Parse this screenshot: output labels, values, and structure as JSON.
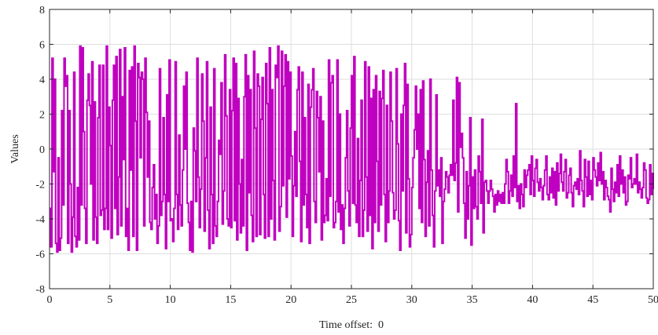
{
  "chart_data": {
    "type": "line",
    "title": "",
    "xlabel": "Time offset:  0",
    "ylabel": "Values",
    "xlim": [
      0,
      50
    ],
    "ylim": [
      -8,
      8
    ],
    "x_ticks": [
      0,
      5,
      10,
      15,
      20,
      25,
      30,
      35,
      40,
      45,
      50
    ],
    "y_ticks": [
      -8,
      -6,
      -4,
      -2,
      0,
      2,
      4,
      6,
      8
    ],
    "grid": true,
    "legend": "none",
    "series_color": "#C000C0",
    "interpolation": "step",
    "series": [
      {
        "dt": 0.1,
        "values": [
          -3.4,
          -5.6,
          5.2,
          -1.3,
          4.0,
          -5.4,
          -5.9,
          -0.5,
          -5.8,
          -5.1,
          2.2,
          -3.2,
          5.2,
          3.6,
          4.2,
          -5.4,
          2.2,
          -2.0,
          -5.9,
          -3.9,
          4.4,
          -5.0,
          -5.6,
          -2.2,
          -5.2,
          5.9,
          -3.2,
          5.8,
          1.0,
          -3.4,
          -5.4,
          2.8,
          4.3,
          2.5,
          -2.0,
          5.0,
          -5.2,
          2.7,
          -3.9,
          -5.4,
          1.8,
          4.8,
          -3.8,
          -3.5,
          4.8,
          -4.6,
          -3.4,
          5.9,
          -4.6,
          2.4,
          0.2,
          -5.1,
          2.8,
          4.8,
          -3.4,
          5.3,
          -4.9,
          -1.6,
          5.7,
          -4.4,
          3.0,
          -0.6,
          5.8,
          -5.0,
          -3.4,
          -5.8,
          4.5,
          -1.2,
          4.7,
          -5.0,
          5.9,
          1.6,
          -5.8,
          4.9,
          4.1,
          -0.5,
          4.4,
          4.0,
          -4.4,
          5.2,
          2.1,
          -1.6,
          1.6,
          -4.2,
          -4.6,
          -2.2,
          -0.9,
          -4.0,
          -2.6,
          -5.4,
          -4.4,
          4.6,
          -3.8,
          -3.0,
          1.8,
          -2.6,
          -5.7,
          3.1,
          -3.0,
          5.1,
          -4.1,
          -4.0,
          -5.3,
          -3.4,
          5.0,
          -2.6,
          -4.6,
          0.8,
          -3.2,
          -4.4,
          -1.2,
          3.6,
          0.0,
          4.4,
          -3.1,
          -4.2,
          -5.8,
          -3.0,
          -5.9,
          1.2,
          -0.1,
          -3.0,
          5.2,
          -1.6,
          -4.5,
          -2.3,
          4.3,
          1.6,
          -4.7,
          -0.5,
          5.0,
          -3.5,
          -5.7,
          2.4,
          -2.6,
          -5.4,
          4.6,
          -4.4,
          -5.0,
          -3.0,
          0.5,
          -0.3,
          3.8,
          -4.3,
          -2.4,
          5.4,
          1.9,
          -4.0,
          -4.4,
          3.4,
          -4.5,
          2.2,
          5.2,
          -4.1,
          4.9,
          -5.2,
          2.9,
          -2.0,
          -4.8,
          -0.6,
          -4.4,
          3.0,
          5.4,
          -5.8,
          4.2,
          -2.5,
          3.4,
          -3.8,
          -5.3,
          5.6,
          1.2,
          -5.0,
          4.3,
          3.6,
          -4.9,
          1.7,
          4.1,
          -2.6,
          -5.1,
          4.9,
          2.6,
          -5.0,
          5.8,
          -4.0,
          3.4,
          -1.8,
          -5.2,
          4.8,
          4.1,
          5.9,
          -4.7,
          -3.3,
          5.6,
          -2.1,
          3.6,
          5.4,
          -3.9,
          5.0,
          -1.7,
          4.4,
          -0.4,
          -5.0,
          -2.1,
          1.0,
          -2.7,
          3.4,
          4.7,
          -0.7,
          -5.3,
          4.4,
          -3.2,
          1.8,
          -2.6,
          -4.5,
          3.7,
          -5.4,
          2.4,
          3.4,
          4.6,
          -3.0,
          -4.2,
          3.3,
          1.8,
          -1.3,
          3.0,
          -5.2,
          1.6,
          -4.2,
          -3.8,
          -1.7,
          -4.1,
          5.1,
          -2.7,
          3.8,
          4.2,
          -4.5,
          -4.2,
          -3.0,
          5.1,
          -3.6,
          2.0,
          -4.6,
          -3.2,
          -5.4,
          -3.4,
          -0.5,
          2.2,
          -2.4,
          -4.4,
          1.2,
          4.2,
          -3.1,
          5.3,
          -3.2,
          -4.2,
          0.6,
          -5.0,
          -1.8,
          2.8,
          -5.0,
          -3.5,
          5.0,
          -1.6,
          -4.7,
          4.7,
          -3.8,
          2.9,
          -5.7,
          3.4,
          -4.2,
          4.2,
          -0.7,
          -4.7,
          3.3,
          -3.2,
          2.9,
          4.5,
          -2.6,
          -5.3,
          2.5,
          -4.2,
          -2.4,
          4.4,
          1.6,
          -2.5,
          -4.0,
          -3.5,
          4.6,
          0.3,
          -4.1,
          -5.8,
          2.0,
          -2.4,
          2.5,
          4.9,
          -4.8,
          3.7,
          -1.7,
          -5.6,
          -4.9,
          -2.2,
          -0.5,
          1.1,
          3.6,
          0.0,
          2.0,
          -3.4,
          3.4,
          -4.2,
          3.9,
          -0.6,
          -5.0,
          -1.9,
          -0.1,
          -4.4,
          4.0,
          -1.2,
          -3.8,
          -5.6,
          -2.4,
          3.1,
          -2.1,
          -1.2,
          -2.7,
          -0.5,
          -5.4,
          -3.0,
          -2.3,
          -1.3,
          -1.6,
          -2.5,
          -1.5,
          -0.9,
          -1.5,
          2.8,
          -1.8,
          -0.8,
          4.1,
          -3.6,
          3.8,
          0.1,
          0.9,
          -0.5,
          -3.1,
          -5.1,
          -1.3,
          -4.0,
          -2.1,
          1.8,
          -5.5,
          -1.6,
          -3.4,
          -1.2,
          -3.3,
          -4.0,
          -0.4,
          -1.3,
          -3.1,
          1.7,
          -4.8,
          -1.9,
          -1.8,
          -2.4,
          -3.1,
          -2.4,
          -1.8,
          -2.3,
          -2.7,
          -3.6,
          -2.6,
          -3.2,
          -2.4,
          -3.0,
          -2.6,
          -3.1,
          -2.5,
          -3.1,
          -2.0,
          -0.6,
          -1.3,
          -3.1,
          -2.4,
          -1.5,
          -2.7,
          -0.4,
          -2.2,
          2.6,
          -3.0,
          -2.1,
          -3.4,
          -2.0,
          -2.6,
          -3.3,
          -1.2,
          -2.2,
          -1.5,
          -1.2,
          -0.9,
          -2.6,
          -0.4,
          -1.8,
          -2.7,
          -1.1,
          -0.6,
          -1.9,
          -2.4,
          -1.7,
          -2.2,
          -2.9,
          -2.1,
          -1.2,
          -0.4,
          -2.6,
          -2.9,
          -1.6,
          -2.5,
          -1.1,
          -2.8,
          -1.3,
          -3.2,
          -0.8,
          -2.4,
          -1.4,
          -0.3,
          -1.9,
          -2.4,
          -1.3,
          -0.6,
          -2.8,
          -2.5,
          -1.5,
          -1.1,
          -2.5,
          -3.3,
          -2.1,
          -1.9,
          -2.3,
          -1.7,
          -2.6,
          -0.1,
          -1.8,
          -2.4,
          -3.3,
          -0.6,
          -1.6,
          -2.7,
          -0.7,
          -2.6,
          -1.8,
          -2.9,
          -0.5,
          -1.2,
          -1.6,
          -2.1,
          -0.8,
          -1.8,
          -0.2,
          -2.0,
          -1.3,
          -2.9,
          -1.8,
          -2.2,
          -2.7,
          -2.9,
          -3.6,
          -1.1,
          -2.3,
          -3.0,
          -1.9,
          -2.5,
          -0.9,
          -2.7,
          -0.4,
          -2.0,
          -1.2,
          -2.5,
          -1.6,
          -3.2,
          -3.0,
          -1.5,
          -1.7,
          -0.5,
          -2.2,
          -2.0,
          -1.7,
          -2.0,
          -0.3,
          -2.5,
          -1.9,
          -2.3,
          -2.8,
          -2.2,
          -0.8,
          -1.2,
          -2.8,
          -3.1,
          -2.9,
          -0.9,
          -2.6,
          -1.4,
          -2.3
        ]
      }
    ]
  }
}
